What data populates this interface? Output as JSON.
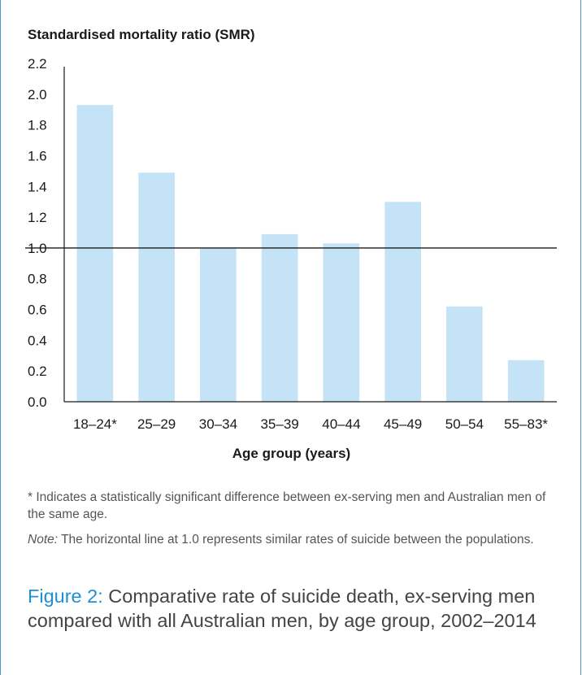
{
  "chart_data": {
    "type": "bar",
    "title": "",
    "ylabel": "Standardised mortality ratio (SMR)",
    "xlabel": "Age group (years)",
    "categories": [
      "18–24*",
      "25–29",
      "30–34",
      "35–39",
      "40–44",
      "45–49",
      "50–54",
      "55–83*"
    ],
    "values": [
      1.93,
      1.49,
      1.0,
      1.09,
      1.03,
      1.3,
      0.62,
      0.27
    ],
    "ylim": [
      0,
      2.2
    ],
    "yticks": [
      "0.0",
      "0.2",
      "0.4",
      "0.6",
      "0.8",
      "1.0",
      "1.2",
      "1.4",
      "1.6",
      "1.8",
      "2.0",
      "2.2"
    ],
    "reference_line": 1.0,
    "bar_color": "#c5e3f6",
    "grid": false
  },
  "footnotes": {
    "significance": "* Indicates a statistically significant difference between ex-serving men and Australian men of the same age.",
    "note_label": "Note:",
    "note_text": " The horizontal line at 1.0 represents similar rates of suicide between the populations."
  },
  "caption": {
    "label": "Figure 2:",
    "text": " Comparative rate of suicide death, ex-serving men compared with all Australian men, by age group, 2002–2014"
  },
  "colors": {
    "accent": "#1f8fd4",
    "frame": "#4a9bd1"
  }
}
